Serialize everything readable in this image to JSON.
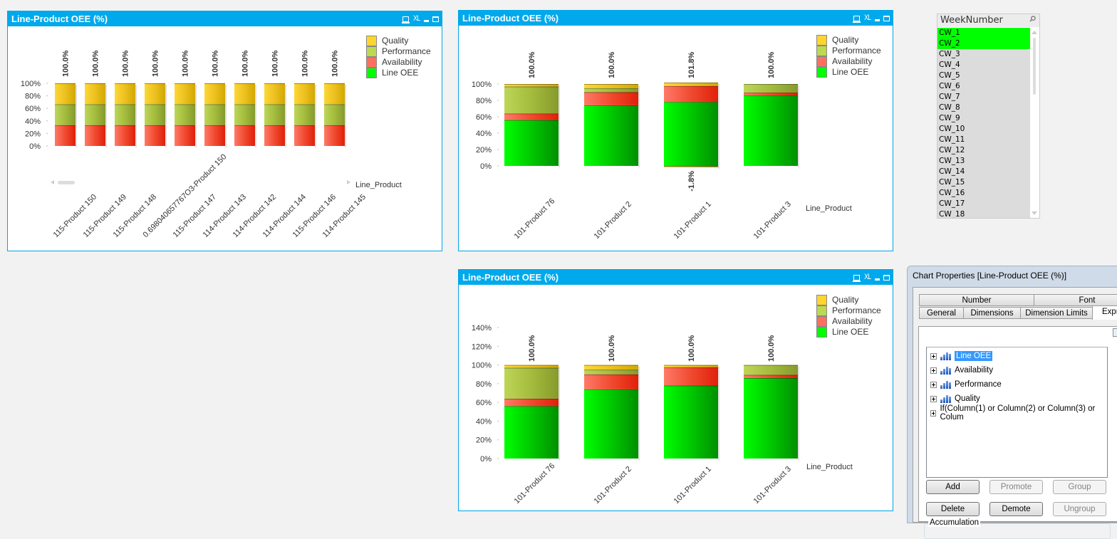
{
  "charts": [
    {
      "title": "Line-Product OEE (%)",
      "header_icons": [
        "print-icon",
        "xl-icon",
        "minimize-icon",
        "maximize-icon"
      ],
      "header_xl_label": "XL",
      "dimension_label": "Line_Product",
      "chart_data": {
        "type": "bar",
        "stacked": true,
        "title": "Line-Product OEE (%)",
        "xlabel": "Line_Product",
        "ylabel": "",
        "ylim": [
          0,
          100
        ],
        "yticks": [
          "0%",
          "20%",
          "40%",
          "60%",
          "80%",
          "100%"
        ],
        "ytick_values": [
          0,
          20,
          40,
          60,
          80,
          100
        ],
        "categories": [
          "115-Product 150",
          "115-Product 149",
          "115-Product 148",
          "0.698040657767O3-Product 150",
          "115-Product 147",
          "114-Product 143",
          "114-Product 142",
          "114-Product 144",
          "115-Product 146",
          "114-Product 145"
        ],
        "series": [
          {
            "name": "Line OEE",
            "color": "#00ff00",
            "values": [
              0,
              0,
              0,
              0,
              0,
              0,
              0,
              0,
              0,
              0
            ]
          },
          {
            "name": "Availability",
            "color": "#ff6f5e",
            "values": [
              33.3,
              33.3,
              33.3,
              33.3,
              33.3,
              33.3,
              33.3,
              33.3,
              33.3,
              33.3
            ]
          },
          {
            "name": "Performance",
            "color": "#bcd94f",
            "values": [
              33.3,
              33.3,
              33.3,
              33.3,
              33.3,
              33.3,
              33.3,
              33.3,
              33.3,
              33.3
            ]
          },
          {
            "name": "Quality",
            "color": "#ffd52e",
            "values": [
              33.4,
              33.4,
              33.4,
              33.4,
              33.4,
              33.4,
              33.4,
              33.4,
              33.4,
              33.4
            ]
          }
        ],
        "total_labels": [
          "100.0%",
          "100.0%",
          "100.0%",
          "100.0%",
          "100.0%",
          "100.0%",
          "100.0%",
          "100.0%",
          "100.0%",
          "100.0%"
        ],
        "negative_labels": [
          "",
          "",
          "",
          "",
          "",
          "",
          "",
          "",
          "",
          ""
        ],
        "legend": [
          "Quality",
          "Performance",
          "Availability",
          "Line OEE"
        ],
        "legend_position": "top-right",
        "grid": false,
        "scrollbar": true
      }
    },
    {
      "title": "Line-Product OEE (%)",
      "header_icons": [
        "print-icon",
        "xl-icon",
        "minimize-icon",
        "maximize-icon"
      ],
      "header_xl_label": "XL",
      "dimension_label": "Line_Product",
      "chart_data": {
        "type": "bar",
        "stacked": true,
        "title": "Line-Product OEE (%)",
        "xlabel": "Line_Product",
        "ylabel": "",
        "ylim": [
          0,
          100
        ],
        "yticks": [
          "0%",
          "20%",
          "40%",
          "60%",
          "80%",
          "100%"
        ],
        "ytick_values": [
          0,
          20,
          40,
          60,
          80,
          100
        ],
        "categories": [
          "101-Product 76",
          "101-Product 2",
          "101-Product 1",
          "101-Product 3"
        ],
        "series": [
          {
            "name": "Line OEE",
            "color": "#00ff00",
            "values": [
              56,
              74,
              78,
              86
            ]
          },
          {
            "name": "Availability",
            "color": "#ff6f5e",
            "values": [
              8,
              16,
              19.6,
              3.5
            ]
          },
          {
            "name": "Performance",
            "color": "#bcd94f",
            "values": [
              33,
              5,
              -1.8,
              10.5
            ]
          },
          {
            "name": "Quality",
            "color": "#ffd52e",
            "values": [
              3,
              5,
              4.2,
              0
            ]
          }
        ],
        "total_labels": [
          "100.0%",
          "100.0%",
          "101.8%",
          "100.0%"
        ],
        "negative_labels": [
          "",
          "",
          "-1.8%",
          ""
        ],
        "legend": [
          "Quality",
          "Performance",
          "Availability",
          "Line OEE"
        ],
        "legend_position": "top-right",
        "grid": false,
        "scrollbar": false
      }
    },
    {
      "title": "Line-Product OEE (%)",
      "header_icons": [
        "print-icon",
        "xl-icon",
        "minimize-icon",
        "maximize-icon"
      ],
      "header_xl_label": "XL",
      "dimension_label": "Line_Product",
      "chart_data": {
        "type": "bar",
        "stacked": true,
        "title": "Line-Product OEE (%)",
        "xlabel": "Line_Product",
        "ylabel": "",
        "ylim": [
          0,
          140
        ],
        "yticks": [
          "0%",
          "20%",
          "40%",
          "60%",
          "80%",
          "100%",
          "120%",
          "140%"
        ],
        "ytick_values": [
          0,
          20,
          40,
          60,
          80,
          100,
          120,
          140
        ],
        "categories": [
          "101-Product 76",
          "101-Product 2",
          "101-Product 1",
          "101-Product 3"
        ],
        "series": [
          {
            "name": "Line OEE",
            "color": "#00ff00",
            "values": [
              56,
              74,
              78,
              86
            ]
          },
          {
            "name": "Availability",
            "color": "#ff6f5e",
            "values": [
              8,
              16,
              19.6,
              3.5
            ]
          },
          {
            "name": "Performance",
            "color": "#bcd94f",
            "values": [
              33,
              5,
              0,
              10.5
            ]
          },
          {
            "name": "Quality",
            "color": "#ffd52e",
            "values": [
              3,
              5,
              2.4,
              0
            ]
          }
        ],
        "total_labels": [
          "100.0%",
          "100.0%",
          "100.0%",
          "100.0%"
        ],
        "negative_labels": [
          "",
          "",
          "",
          ""
        ],
        "legend": [
          "Quality",
          "Performance",
          "Availability",
          "Line OEE"
        ],
        "legend_position": "top-right",
        "grid": false,
        "scrollbar": false
      }
    }
  ],
  "listbox": {
    "title": "WeekNumber",
    "items": [
      {
        "label": "CW_1",
        "selected": true
      },
      {
        "label": "CW_2",
        "selected": true
      },
      {
        "label": "CW_3",
        "selected": false
      },
      {
        "label": "CW_4",
        "selected": false
      },
      {
        "label": "CW_5",
        "selected": false
      },
      {
        "label": "CW_6",
        "selected": false
      },
      {
        "label": "CW_7",
        "selected": false
      },
      {
        "label": "CW_8",
        "selected": false
      },
      {
        "label": "CW_9",
        "selected": false
      },
      {
        "label": "CW_10",
        "selected": false
      },
      {
        "label": "CW_11",
        "selected": false
      },
      {
        "label": "CW_12",
        "selected": false
      },
      {
        "label": "CW_13",
        "selected": false
      },
      {
        "label": "CW_14",
        "selected": false
      },
      {
        "label": "CW_15",
        "selected": false
      },
      {
        "label": "CW_16",
        "selected": false
      },
      {
        "label": "CW_17",
        "selected": false
      },
      {
        "label": "CW_18",
        "selected": false
      }
    ],
    "selected_color": "#00ff00"
  },
  "dialog": {
    "title": "Chart Properties [Line-Product OEE (%)]",
    "tabs_row1": [
      "Number",
      "Font"
    ],
    "tabs_row2": [
      "General",
      "Dimensions",
      "Dimension Limits",
      "Expr"
    ],
    "active_tab": "Expr",
    "expressions": [
      {
        "label": "Line OEE",
        "selected": true,
        "has_chart_icon": true
      },
      {
        "label": "Availability",
        "selected": false,
        "has_chart_icon": true
      },
      {
        "label": "Performance",
        "selected": false,
        "has_chart_icon": true
      },
      {
        "label": "Quality",
        "selected": false,
        "has_chart_icon": true
      },
      {
        "label": "If(Column(1) or Column(2) or Column(3) or Colum",
        "selected": false,
        "has_chart_icon": false
      }
    ],
    "buttons": {
      "add": "Add",
      "promote": "Promote",
      "group": "Group",
      "delete": "Delete",
      "demote": "Demote",
      "ungroup": "Ungroup"
    },
    "accumulation_label": "Accumulation"
  }
}
